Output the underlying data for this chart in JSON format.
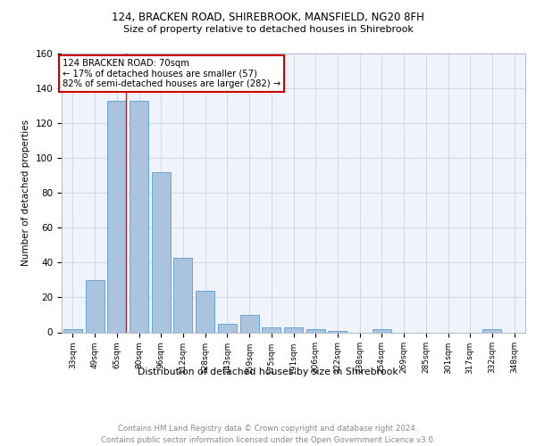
{
  "title1": "124, BRACKEN ROAD, SHIREBROOK, MANSFIELD, NG20 8FH",
  "title2": "Size of property relative to detached houses in Shirebrook",
  "xlabel": "Distribution of detached houses by size in Shirebrook",
  "ylabel": "Number of detached properties",
  "footnote1": "Contains HM Land Registry data © Crown copyright and database right 2024.",
  "footnote2": "Contains public sector information licensed under the Open Government Licence v3.0.",
  "annotation_line1": "124 BRACKEN ROAD: 70sqm",
  "annotation_line2": "← 17% of detached houses are smaller (57)",
  "annotation_line3": "82% of semi-detached houses are larger (282) →",
  "bar_labels": [
    "33sqm",
    "49sqm",
    "65sqm",
    "80sqm",
    "96sqm",
    "112sqm",
    "128sqm",
    "143sqm",
    "159sqm",
    "175sqm",
    "191sqm",
    "206sqm",
    "222sqm",
    "238sqm",
    "254sqm",
    "269sqm",
    "285sqm",
    "301sqm",
    "317sqm",
    "332sqm",
    "348sqm"
  ],
  "bar_values": [
    2,
    30,
    133,
    133,
    92,
    43,
    24,
    5,
    10,
    3,
    3,
    2,
    1,
    0,
    2,
    0,
    0,
    0,
    0,
    2,
    0
  ],
  "bar_color": "#aac4e0",
  "bar_edge_color": "#5a9fd4",
  "red_line_index": 2,
  "grid_color": "#d0d8e8",
  "annotation_box_edge": "#cc0000",
  "ylim": [
    0,
    160
  ],
  "yticks": [
    0,
    20,
    40,
    60,
    80,
    100,
    120,
    140,
    160
  ],
  "bg_color": "#f0f4fa"
}
